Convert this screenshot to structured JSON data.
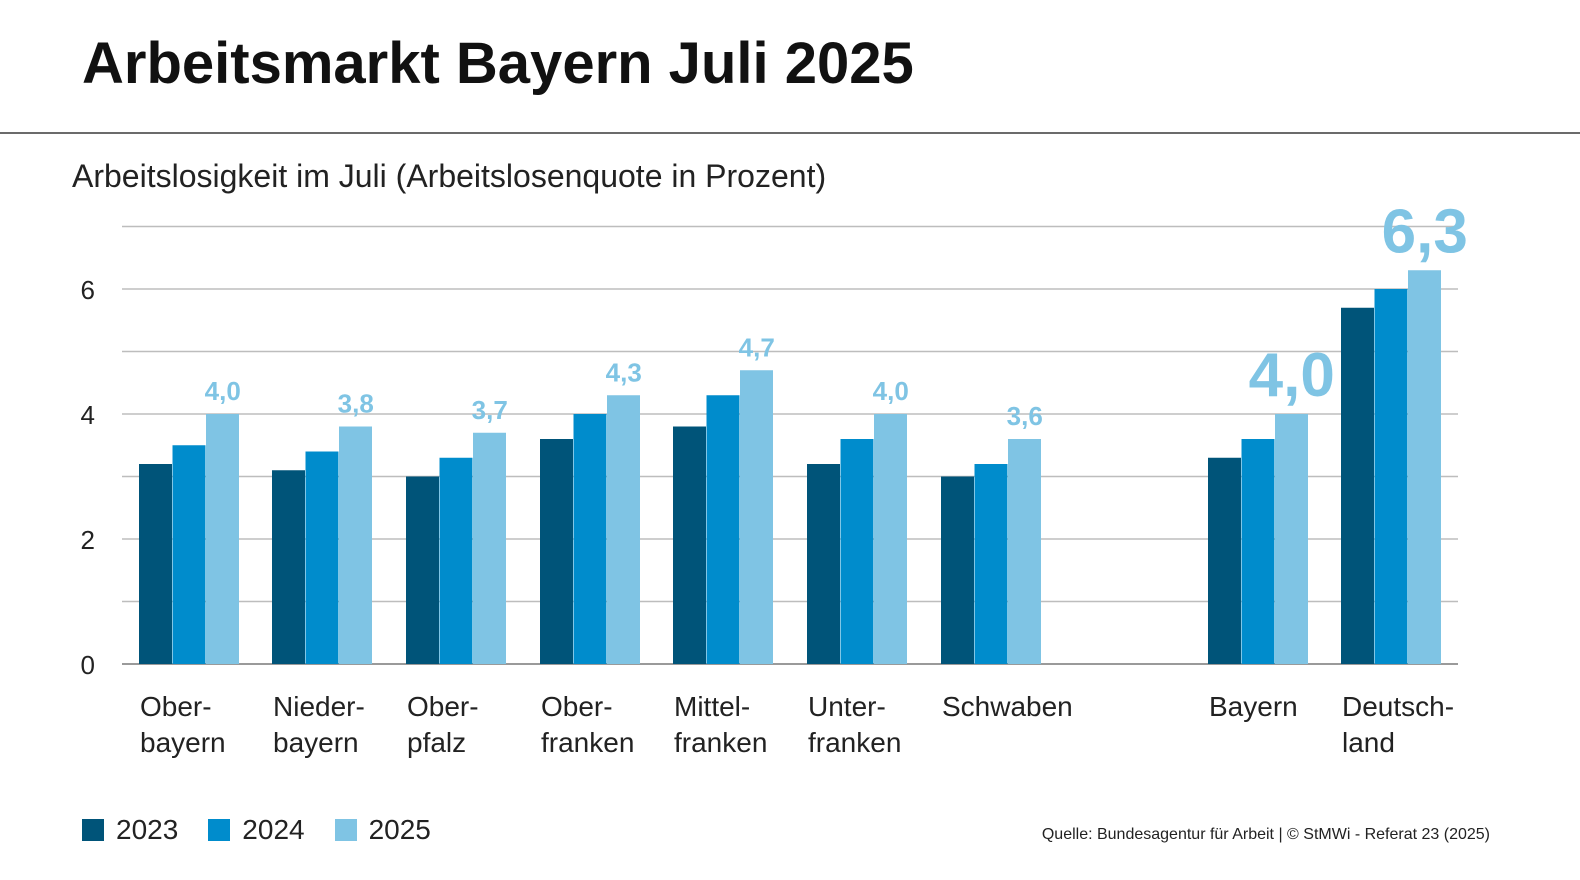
{
  "header": {
    "title": "Arbeitsmarkt Bayern Juli 2025",
    "subtitle": "Arbeitslosigkeit im Juli (Arbeitslosenquote in Prozent)"
  },
  "source": "Quelle: Bundesagentur für Arbeit  | © StMWi - Referat 23 (2025)",
  "colors": {
    "2023": "#005479",
    "2024": "#008ccc",
    "2025": "#7fc4e4",
    "grid": "#bdbdbd",
    "axis": "#9a9a9a"
  },
  "chart_data": {
    "type": "bar",
    "title": "Arbeitslosigkeit im Juli (Arbeitslosenquote in Prozent)",
    "categories": [
      [
        "Ober-",
        "bayern"
      ],
      [
        "Nieder-",
        "bayern"
      ],
      [
        "Ober-",
        "pfalz"
      ],
      [
        "Ober-",
        "franken"
      ],
      [
        "Mittel-",
        "franken"
      ],
      [
        "Unter-",
        "franken"
      ],
      [
        "Schwaben"
      ],
      [
        "Bayern"
      ],
      [
        "Deutsch-",
        "land"
      ]
    ],
    "series": [
      {
        "name": "2023",
        "values": [
          3.2,
          3.1,
          3.0,
          3.6,
          3.8,
          3.2,
          3.0,
          3.3,
          5.7
        ]
      },
      {
        "name": "2024",
        "values": [
          3.5,
          3.4,
          3.3,
          4.0,
          4.3,
          3.6,
          3.2,
          3.6,
          6.0
        ]
      },
      {
        "name": "2025",
        "values": [
          4.0,
          3.8,
          3.7,
          4.3,
          4.7,
          4.0,
          3.6,
          4.0,
          6.3
        ]
      }
    ],
    "data_labels": [
      "4,0",
      "3,8",
      "3,7",
      "4,3",
      "4,7",
      "4,0",
      "3,6",
      "4,0",
      "6,3"
    ],
    "y_ticks": [
      "0",
      "2",
      "4",
      "6"
    ],
    "ylim": [
      0,
      7
    ],
    "grid": true,
    "legend": "bottom-left"
  }
}
